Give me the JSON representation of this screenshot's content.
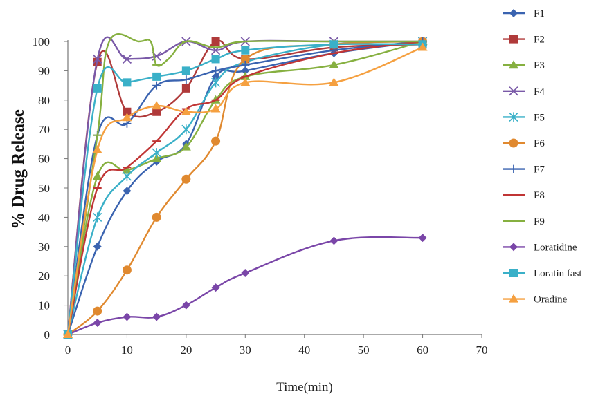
{
  "chart_data": {
    "type": "line",
    "title": "",
    "xlabel": "Time(min)",
    "ylabel": "% Drug Release",
    "xlim": [
      0,
      70
    ],
    "ylim": [
      0,
      100
    ],
    "xticks": [
      0,
      10,
      20,
      30,
      40,
      50,
      60,
      70
    ],
    "yticks": [
      0,
      10,
      20,
      30,
      40,
      50,
      60,
      70,
      80,
      90,
      100
    ],
    "grid": false,
    "legend_position": "right",
    "series": [
      {
        "name": "F1",
        "color": "#3a63b0",
        "marker": "diamond",
        "x": [
          0,
          5,
          10,
          15,
          20,
          25,
          30,
          45,
          60
        ],
        "y": [
          0,
          30,
          49,
          59,
          65,
          88,
          90,
          96,
          100
        ]
      },
      {
        "name": "F2",
        "color": "#b03a3a",
        "marker": "square",
        "x": [
          0,
          5,
          10,
          15,
          20,
          25,
          30,
          45,
          60
        ],
        "y": [
          0,
          93,
          76,
          76,
          84,
          100,
          94,
          98,
          99
        ]
      },
      {
        "name": "F3",
        "color": "#86b040",
        "marker": "triangle",
        "x": [
          0,
          5,
          10,
          15,
          20,
          25,
          30,
          45,
          60
        ],
        "y": [
          0,
          54,
          56,
          60,
          64,
          80,
          88,
          92,
          100
        ]
      },
      {
        "name": "F4",
        "color": "#7a5aa8",
        "marker": "x",
        "x": [
          0,
          5,
          10,
          15,
          20,
          25,
          30,
          45,
          60
        ],
        "y": [
          0,
          94,
          94,
          95,
          100,
          97,
          100,
          100,
          100
        ]
      },
      {
        "name": "F5",
        "color": "#3ab0c8",
        "marker": "star",
        "x": [
          0,
          5,
          10,
          15,
          20,
          25,
          30,
          45,
          60
        ],
        "y": [
          0,
          40,
          54,
          62,
          70,
          86,
          93,
          99,
          100
        ]
      },
      {
        "name": "F6",
        "color": "#e0892f",
        "marker": "circle",
        "x": [
          0,
          5,
          10,
          15,
          20,
          25,
          30,
          45,
          60
        ],
        "y": [
          0,
          8,
          22,
          40,
          53,
          66,
          94,
          99,
          100
        ]
      },
      {
        "name": "F7",
        "color": "#3a63b0",
        "marker": "plus",
        "x": [
          0,
          5,
          10,
          15,
          20,
          25,
          30,
          45,
          60
        ],
        "y": [
          0,
          68,
          72,
          85,
          87,
          90,
          92,
          97,
          100
        ]
      },
      {
        "name": "F8",
        "color": "#c03535",
        "marker": "dash",
        "x": [
          0,
          5,
          10,
          15,
          20,
          25,
          30,
          45,
          60
        ],
        "y": [
          0,
          50,
          57,
          66,
          77,
          80,
          88,
          96,
          100
        ]
      },
      {
        "name": "F9",
        "color": "#86b040",
        "marker": "dash",
        "x": [
          0,
          5,
          7,
          12,
          14,
          15,
          17,
          20,
          25,
          30,
          45,
          60
        ],
        "y": [
          0,
          68,
          100,
          100,
          100,
          92,
          94,
          100,
          98,
          100,
          100,
          100
        ]
      },
      {
        "name": "Loratidine",
        "color": "#7a46a8",
        "marker": "diamond",
        "x": [
          0,
          5,
          10,
          15,
          20,
          25,
          30,
          45,
          60
        ],
        "y": [
          0,
          4,
          6,
          6,
          10,
          16,
          21,
          32,
          33
        ]
      },
      {
        "name": "Loratin fast",
        "color": "#3ab0c8",
        "marker": "square",
        "x": [
          0,
          5,
          10,
          15,
          20,
          25,
          30,
          45,
          60
        ],
        "y": [
          0,
          84,
          86,
          88,
          90,
          94,
          97,
          99,
          99
        ]
      },
      {
        "name": "Oradine",
        "color": "#f5a040",
        "marker": "triangle",
        "x": [
          0,
          5,
          10,
          15,
          20,
          25,
          30,
          45,
          60
        ],
        "y": [
          0,
          63,
          74,
          78,
          76,
          77,
          86,
          86,
          98
        ]
      }
    ]
  }
}
